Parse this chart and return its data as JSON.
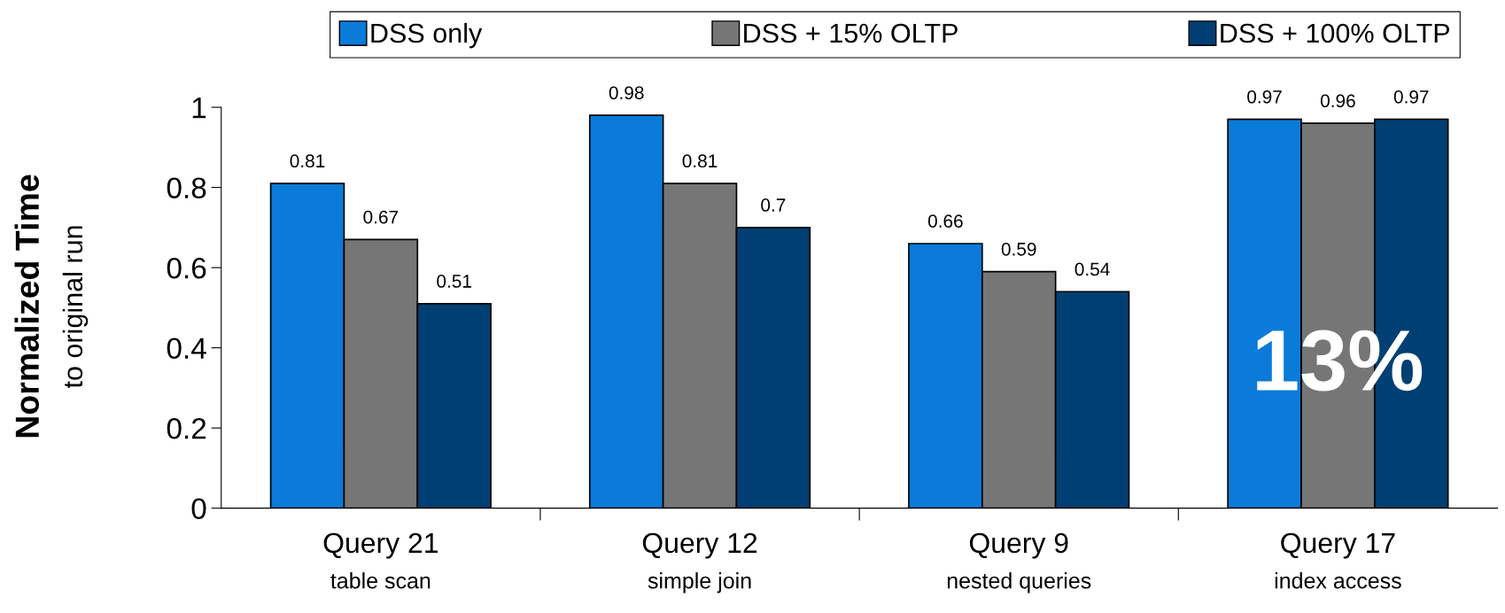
{
  "chart_data": {
    "type": "bar",
    "categories": [
      "Query 21\ntable scan",
      "Query 12\nsimple join",
      "Query 9\nnested queries",
      "Query 17\nindex access"
    ],
    "ylabel": "Normalized Time\nto original run",
    "series": [
      {
        "name": "DSS only",
        "color": "#0a7bd8",
        "values": [
          0.81,
          0.98,
          0.66,
          0.97
        ]
      },
      {
        "name": "DSS + 15% OLTP",
        "color": "#767676",
        "values": [
          0.67,
          0.81,
          0.59,
          0.96
        ]
      },
      {
        "name": "DSS + 100% OLTP",
        "color": "#003f73",
        "values": [
          0.51,
          0.7,
          0.54,
          0.97
        ]
      }
    ],
    "ylim": [
      0,
      1
    ],
    "yticks": [
      0,
      0.2,
      0.4,
      0.6,
      0.8,
      1
    ],
    "data_labels": true,
    "legend": "top",
    "grid": false,
    "annotations": [
      "13%"
    ]
  }
}
